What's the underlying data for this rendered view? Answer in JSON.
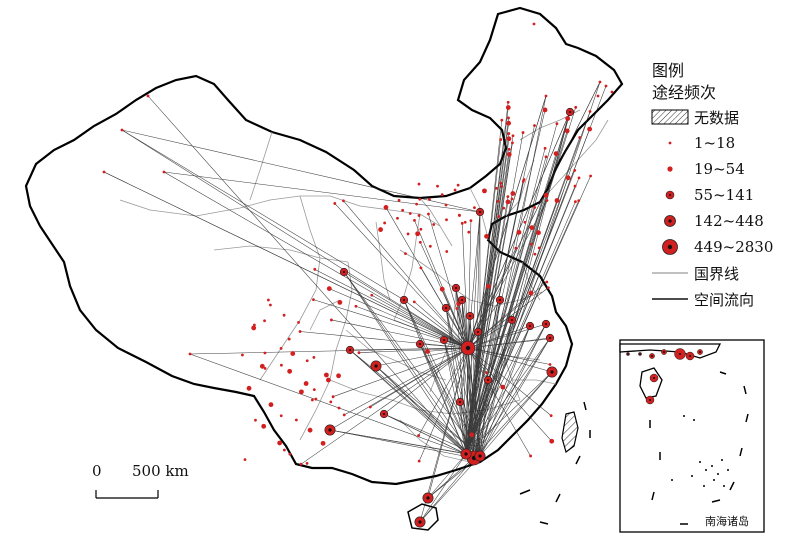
{
  "legend": {
    "title_line1": "图例",
    "title_line2": "途经频次",
    "items": [
      {
        "label": "无数据",
        "symbol": "hatch"
      },
      {
        "label": "1~18",
        "symbol": "dot-xs"
      },
      {
        "label": "19~54",
        "symbol": "dot-s"
      },
      {
        "label": "55~141",
        "symbol": "dot-m"
      },
      {
        "label": "142~448",
        "symbol": "dot-l"
      },
      {
        "label": "449~2830",
        "symbol": "dot-xl"
      },
      {
        "label": "国界线",
        "symbol": "line-gray"
      },
      {
        "label": "空间流向",
        "symbol": "line-black"
      }
    ]
  },
  "scalebar": {
    "zero": "0",
    "distance": "500 km"
  },
  "inset": {
    "label": "南海诸岛"
  },
  "colors": {
    "node_fill": "#d21f1f",
    "node_core": "#111111",
    "flow_line": "#1a1a1a",
    "boundary": "#9a9a9a",
    "coast": "#000000"
  }
}
